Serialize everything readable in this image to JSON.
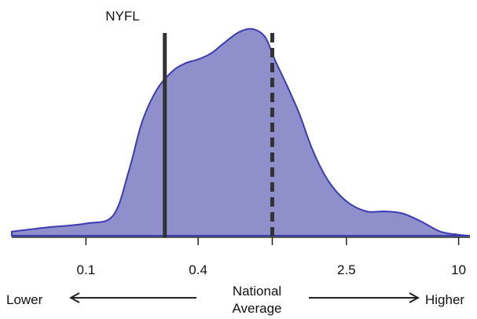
{
  "chart_data": {
    "type": "area",
    "x_scale": "log",
    "xlim": [
      0.04,
      11.5
    ],
    "ylim": [
      0,
      1
    ],
    "grid": false,
    "x_ticks": [
      {
        "value": 0.1,
        "label": "0.1"
      },
      {
        "value": 0.4,
        "label": "0.4"
      },
      {
        "value": 1.0,
        "label": ""
      },
      {
        "value": 2.5,
        "label": "2.5"
      },
      {
        "value": 10,
        "label": "10"
      }
    ],
    "series": [
      {
        "fill_color": "#8f8fcb",
        "line_color": "#3b3bb3",
        "x": [
          0.04,
          0.06,
          0.1,
          0.14,
          0.17,
          0.2,
          0.24,
          0.29,
          0.34,
          0.4,
          0.47,
          0.55,
          0.65,
          0.75,
          0.84,
          0.93,
          1.03,
          1.2,
          1.4,
          1.65,
          2.0,
          2.5,
          3.2,
          4.0,
          5.0,
          6.3,
          8.0,
          10.0,
          11.5
        ],
        "y": [
          0.02,
          0.04,
          0.06,
          0.1,
          0.32,
          0.56,
          0.72,
          0.81,
          0.85,
          0.87,
          0.9,
          0.95,
          1.0,
          1.02,
          1.01,
          0.97,
          0.87,
          0.74,
          0.6,
          0.42,
          0.27,
          0.17,
          0.12,
          0.12,
          0.11,
          0.07,
          0.02,
          0.005,
          0.0
        ]
      }
    ],
    "reference_lines": [
      {
        "label": "NYFL",
        "x": 0.265,
        "style": "solid",
        "color": "#333333"
      },
      {
        "label": "",
        "x": 1.0,
        "style": "dashed",
        "color": "#333333"
      }
    ],
    "annotations": {
      "lower": "Lower",
      "higher": "Higher",
      "center_line1": "National",
      "center_line2": "Average"
    }
  }
}
